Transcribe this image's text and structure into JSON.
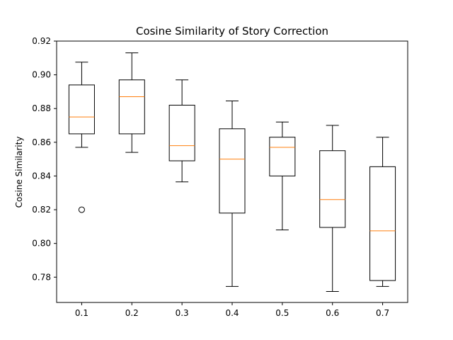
{
  "chart_data": {
    "type": "box",
    "title": "Cosine Similarity of Story Correction",
    "xlabel": "",
    "ylabel": "Cosine Similarity",
    "categories": [
      "0.1",
      "0.2",
      "0.3",
      "0.4",
      "0.5",
      "0.6",
      "0.7"
    ],
    "ylim": [
      0.765,
      0.92
    ],
    "yticks": [
      0.78,
      0.8,
      0.82,
      0.84,
      0.86,
      0.88,
      0.9,
      0.92
    ],
    "ytick_labels": [
      "0.78",
      "0.80",
      "0.82",
      "0.84",
      "0.86",
      "0.88",
      "0.90",
      "0.92"
    ],
    "grid": false,
    "boxes": [
      {
        "category": "0.1",
        "whisker_low": 0.857,
        "q1": 0.865,
        "median": 0.875,
        "q3": 0.894,
        "whisker_high": 0.9075,
        "outliers": [
          0.82
        ]
      },
      {
        "category": "0.2",
        "whisker_low": 0.854,
        "q1": 0.865,
        "median": 0.887,
        "q3": 0.897,
        "whisker_high": 0.913,
        "outliers": []
      },
      {
        "category": "0.3",
        "whisker_low": 0.8365,
        "q1": 0.849,
        "median": 0.858,
        "q3": 0.882,
        "whisker_high": 0.897,
        "outliers": []
      },
      {
        "category": "0.4",
        "whisker_low": 0.7745,
        "q1": 0.818,
        "median": 0.85,
        "q3": 0.868,
        "whisker_high": 0.8845,
        "outliers": []
      },
      {
        "category": "0.5",
        "whisker_low": 0.808,
        "q1": 0.84,
        "median": 0.857,
        "q3": 0.863,
        "whisker_high": 0.872,
        "outliers": []
      },
      {
        "category": "0.6",
        "whisker_low": 0.7715,
        "q1": 0.8095,
        "median": 0.826,
        "q3": 0.855,
        "whisker_high": 0.87,
        "outliers": []
      },
      {
        "category": "0.7",
        "whisker_low": 0.7745,
        "q1": 0.778,
        "median": 0.8075,
        "q3": 0.8455,
        "whisker_high": 0.863,
        "outliers": []
      }
    ],
    "colors": {
      "box": "#000000",
      "median": "#ff7f0e",
      "outlier": "#000000"
    }
  }
}
